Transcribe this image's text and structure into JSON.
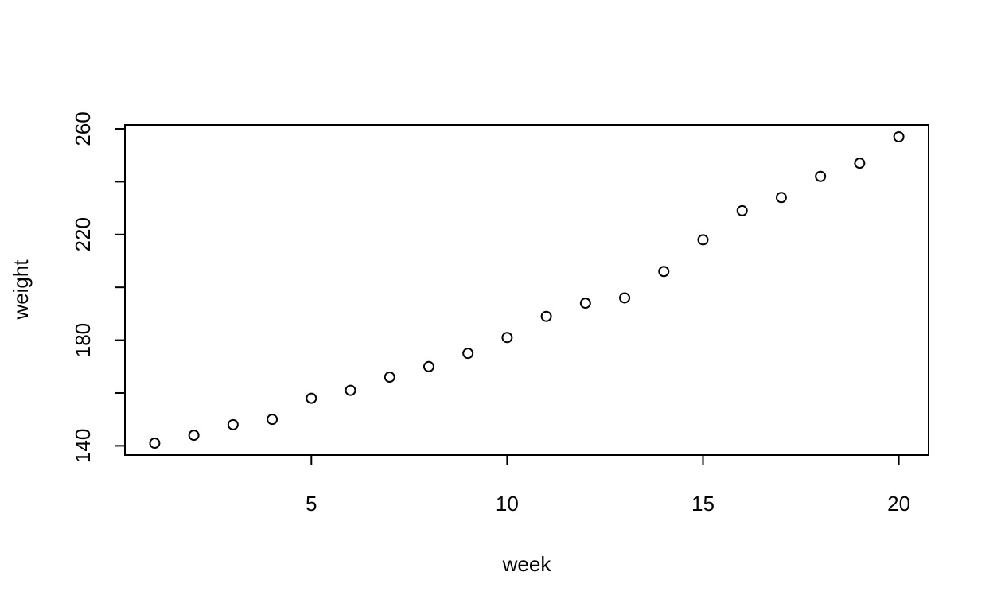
{
  "chart_data": {
    "type": "scatter",
    "title": "",
    "xlabel": "week",
    "ylabel": "weight",
    "x": [
      1,
      2,
      3,
      4,
      5,
      6,
      7,
      8,
      9,
      10,
      11,
      12,
      13,
      14,
      15,
      16,
      17,
      18,
      19,
      20
    ],
    "y": [
      141,
      144,
      148,
      150,
      158,
      161,
      166,
      170,
      175,
      181,
      189,
      194,
      196,
      206,
      218,
      229,
      234,
      242,
      247,
      257
    ],
    "xlim": [
      0.24,
      20.76
    ],
    "ylim": [
      136.5,
      261.5
    ],
    "x_ticks": [
      5,
      10,
      15,
      20
    ],
    "x_tick_labels": [
      "5",
      "10",
      "15",
      "20"
    ],
    "y_ticks": [
      140,
      160,
      180,
      200,
      220,
      240,
      260
    ],
    "y_tick_labels": [
      "140",
      "",
      "180",
      "",
      "220",
      "",
      "260"
    ],
    "grid": false,
    "marker": "open-circle",
    "point_color": "#000000"
  }
}
